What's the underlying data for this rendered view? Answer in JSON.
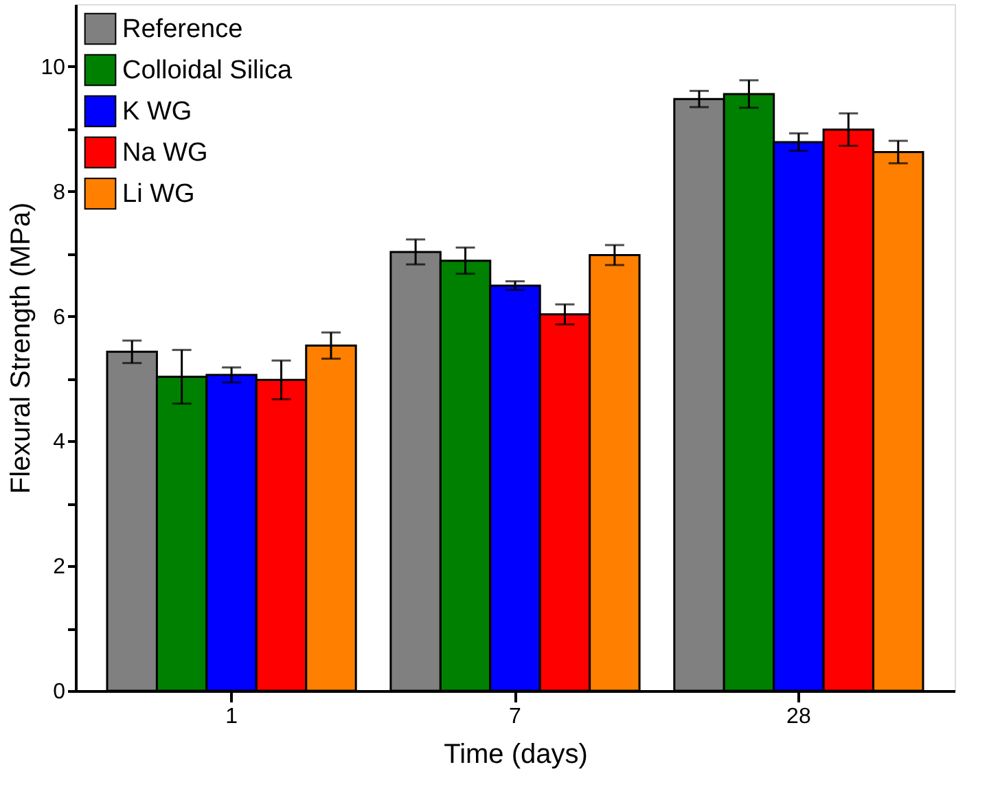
{
  "chart_data": {
    "type": "bar",
    "xlabel": "Time (days)",
    "ylabel": "Flexural Strength (MPa)",
    "categories": [
      "1",
      "7",
      "28"
    ],
    "series": [
      {
        "name": "Reference",
        "color": "#808080",
        "values": [
          5.43,
          7.03,
          9.48
        ],
        "errors": [
          0.18,
          0.2,
          0.13
        ]
      },
      {
        "name": "Colloidal Silica",
        "color": "#008000",
        "values": [
          5.03,
          6.89,
          9.56
        ],
        "errors": [
          0.43,
          0.21,
          0.22
        ]
      },
      {
        "name": "K WG",
        "color": "#0000ff",
        "values": [
          5.06,
          6.49,
          8.79
        ],
        "errors": [
          0.12,
          0.07,
          0.14
        ]
      },
      {
        "name": "Na WG",
        "color": "#ff0000",
        "values": [
          4.98,
          6.03,
          8.99
        ],
        "errors": [
          0.31,
          0.16,
          0.26
        ]
      },
      {
        "name": "Li WG",
        "color": "#ff8000",
        "values": [
          5.53,
          6.98,
          8.63
        ],
        "errors": [
          0.21,
          0.16,
          0.18
        ]
      }
    ],
    "ylim": [
      0,
      11
    ],
    "yticks": [
      0,
      {
        "value": 1,
        "label": null
      },
      2,
      {
        "value": 3,
        "label": null
      },
      4,
      {
        "value": 5,
        "label": null
      },
      6,
      {
        "value": 7,
        "label": null
      },
      8,
      {
        "value": 9,
        "label": null
      },
      10
    ],
    "grid": false,
    "legend": "top left"
  }
}
